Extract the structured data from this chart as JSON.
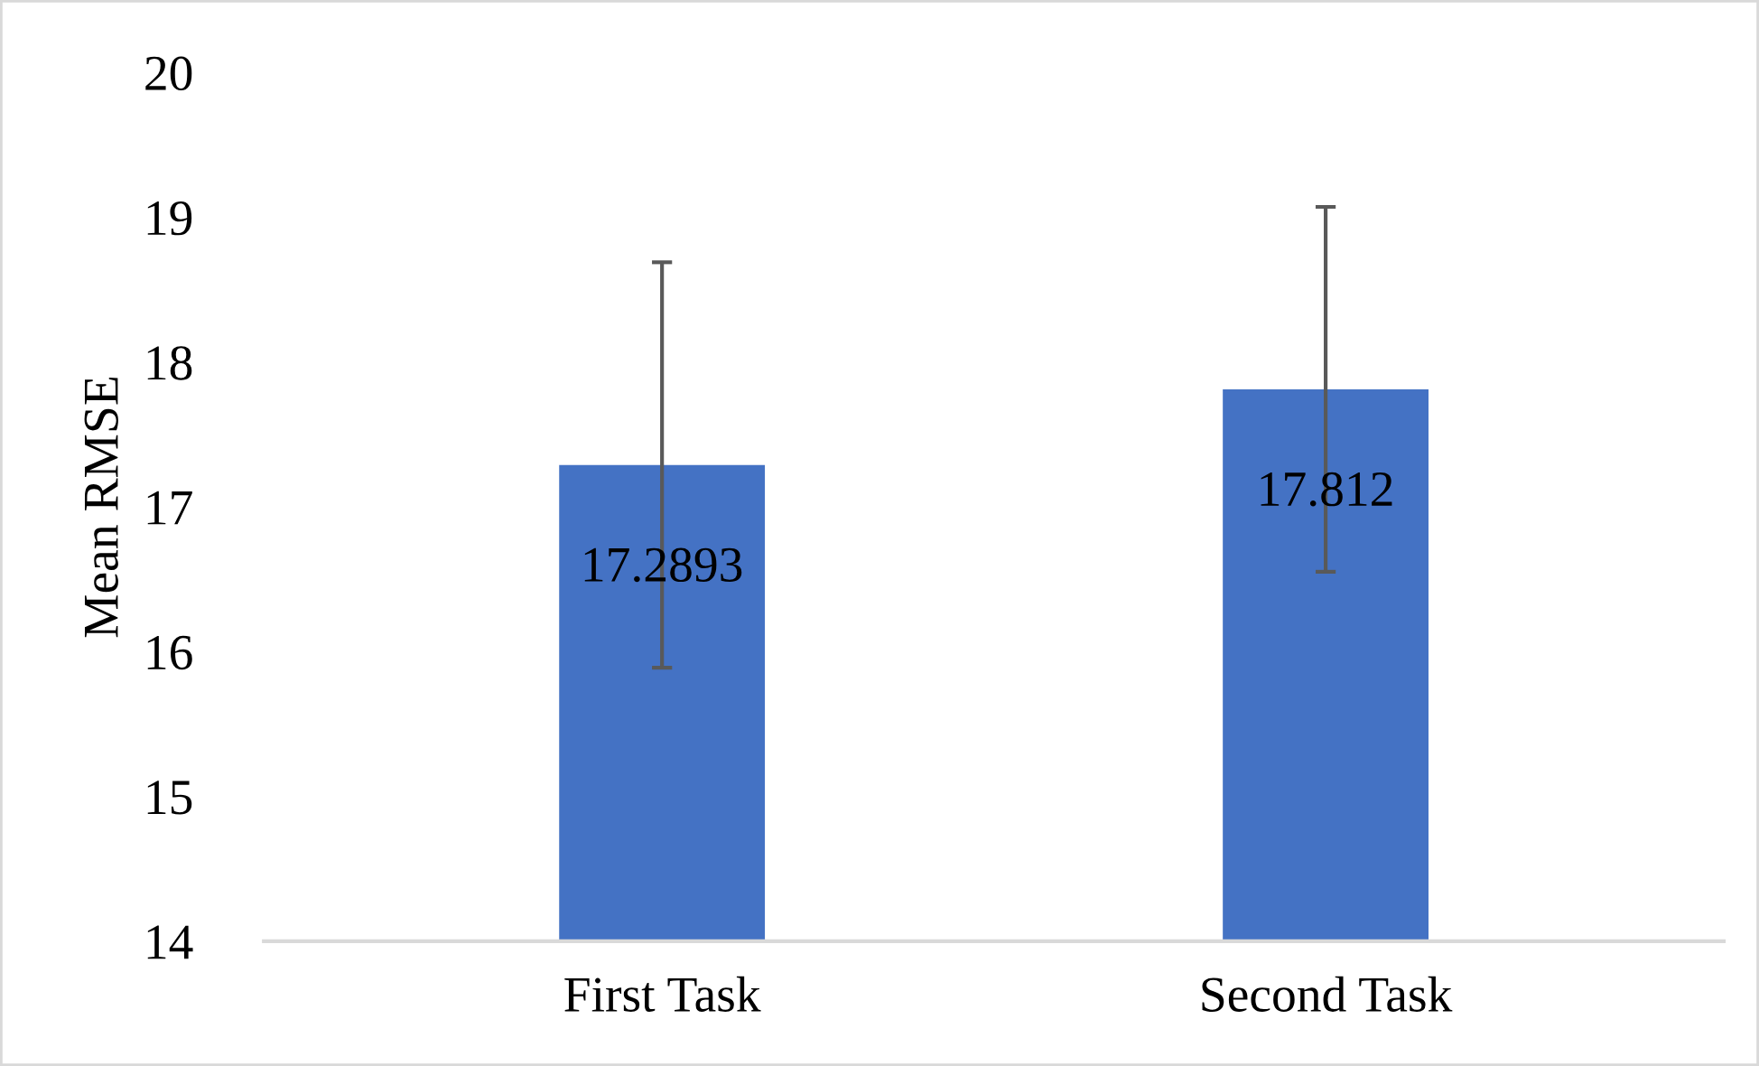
{
  "chart_data": {
    "type": "bar",
    "ylabel": "Mean RMSE",
    "categories": [
      "First Task",
      "Second Task"
    ],
    "values": [
      17.2893,
      17.812
    ],
    "errors": [
      1.4,
      1.26
    ],
    "color": "#4472c4",
    "ylim": [
      14,
      20
    ],
    "yticks": [
      14,
      15,
      16,
      17,
      18,
      19,
      20
    ],
    "data_labels": true
  }
}
